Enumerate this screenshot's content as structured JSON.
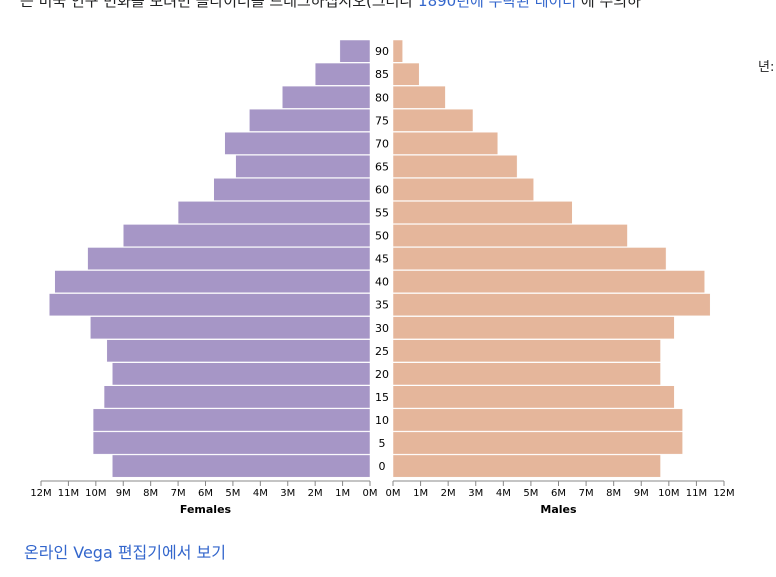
{
  "intro": {
    "text_before": "는 미국 인구 변화를 보려면 슬라이더를 드래그하십시오(그러나 ",
    "link_text": "1890년에 누락된 데이터",
    "text_after": " 에 주의하"
  },
  "year_fragment": "년:",
  "footer": {
    "link_label": "온라인 Vega 편집기에서 보기"
  },
  "colors": {
    "females": "#a696c6",
    "males": "#e5b69b",
    "link": "#3366cc"
  },
  "chart_data": {
    "type": "bar",
    "title": "",
    "categories": [
      "90",
      "85",
      "80",
      "75",
      "70",
      "65",
      "60",
      "55",
      "50",
      "45",
      "40",
      "35",
      "30",
      "25",
      "20",
      "15",
      "10",
      "5",
      "0"
    ],
    "series": [
      {
        "name": "Females",
        "values": [
          1.1,
          2.0,
          3.2,
          4.4,
          5.3,
          4.9,
          5.7,
          7.0,
          9.0,
          10.3,
          11.5,
          11.7,
          10.2,
          9.6,
          9.4,
          9.7,
          10.1,
          10.1,
          9.4
        ]
      },
      {
        "name": "Males",
        "values": [
          0.35,
          0.95,
          1.9,
          2.9,
          3.8,
          4.5,
          5.1,
          6.5,
          8.5,
          9.9,
          11.3,
          11.5,
          10.2,
          9.7,
          9.7,
          10.2,
          10.5,
          10.5,
          9.7
        ]
      }
    ],
    "xlabel_left": "Females",
    "xlabel_right": "Males",
    "xlim": [
      0,
      12000000
    ],
    "x_ticks": [
      "0M",
      "1M",
      "2M",
      "3M",
      "4M",
      "5M",
      "6M",
      "7M",
      "8M",
      "9M",
      "10M",
      "11M",
      "12M"
    ],
    "value_unit": "millions",
    "grid": false
  }
}
